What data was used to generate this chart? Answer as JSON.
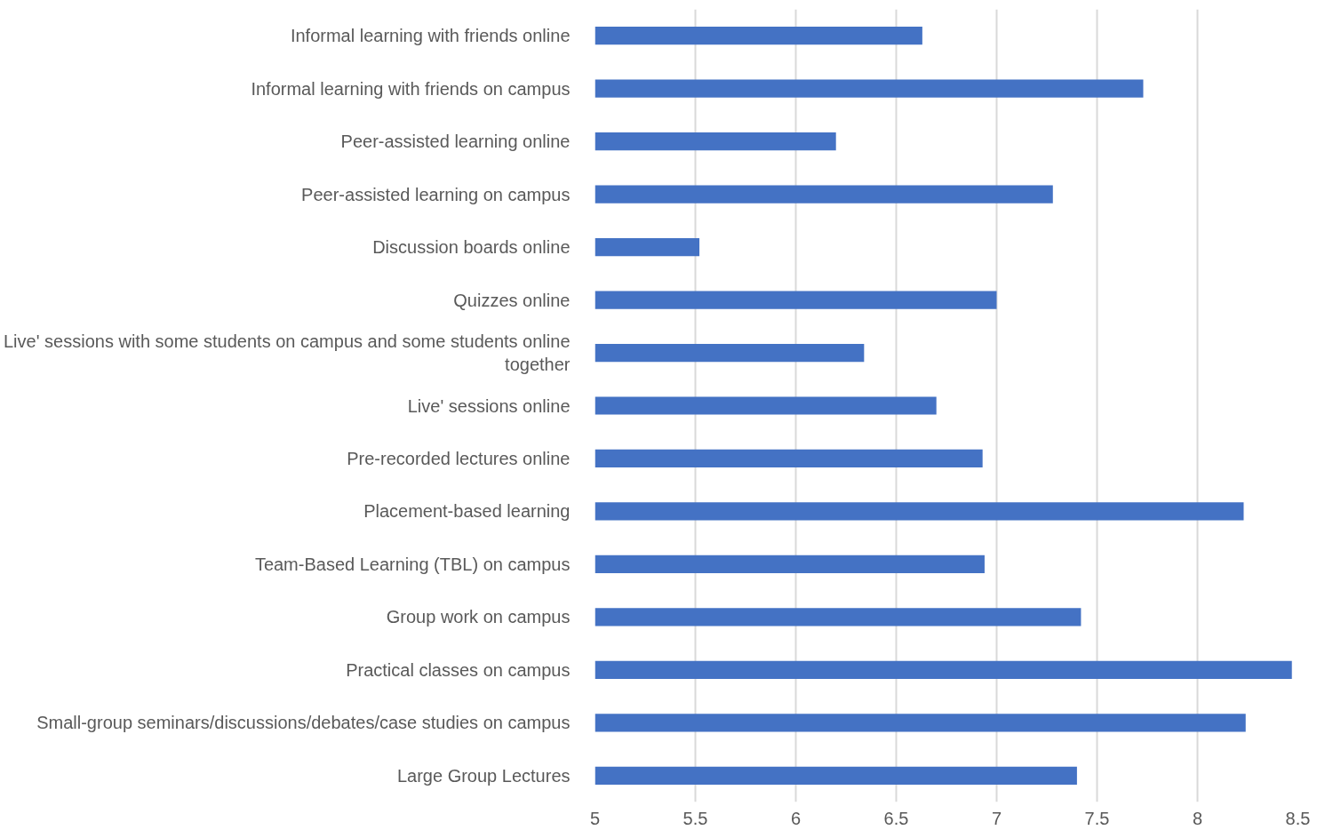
{
  "chart_data": {
    "type": "bar",
    "orientation": "horizontal",
    "color": "#4472c4",
    "categories": [
      "Informal learning with friends online",
      "Informal learning with friends on campus",
      "Peer-assisted learning online",
      "Peer-assisted learning on campus",
      "Discussion boards online",
      "Quizzes online",
      "Live' sessions with some students on campus and some students online together",
      "Live' sessions online",
      "Pre-recorded lectures online",
      "Placement-based learning",
      "Team-Based Learning (TBL) on campus",
      "Group work on campus",
      "Practical classes on campus",
      "Small-group seminars/discussions/debates/case studies on campus",
      "Large Group Lectures"
    ],
    "values": [
      6.63,
      7.73,
      6.2,
      7.28,
      5.52,
      7.0,
      6.34,
      6.7,
      6.93,
      8.23,
      6.94,
      7.42,
      8.47,
      8.24,
      7.4
    ],
    "xlim": [
      5,
      8.5
    ],
    "xticks": [
      5,
      5.5,
      6,
      6.5,
      7,
      7.5,
      8,
      8.5
    ],
    "grid": "x"
  }
}
